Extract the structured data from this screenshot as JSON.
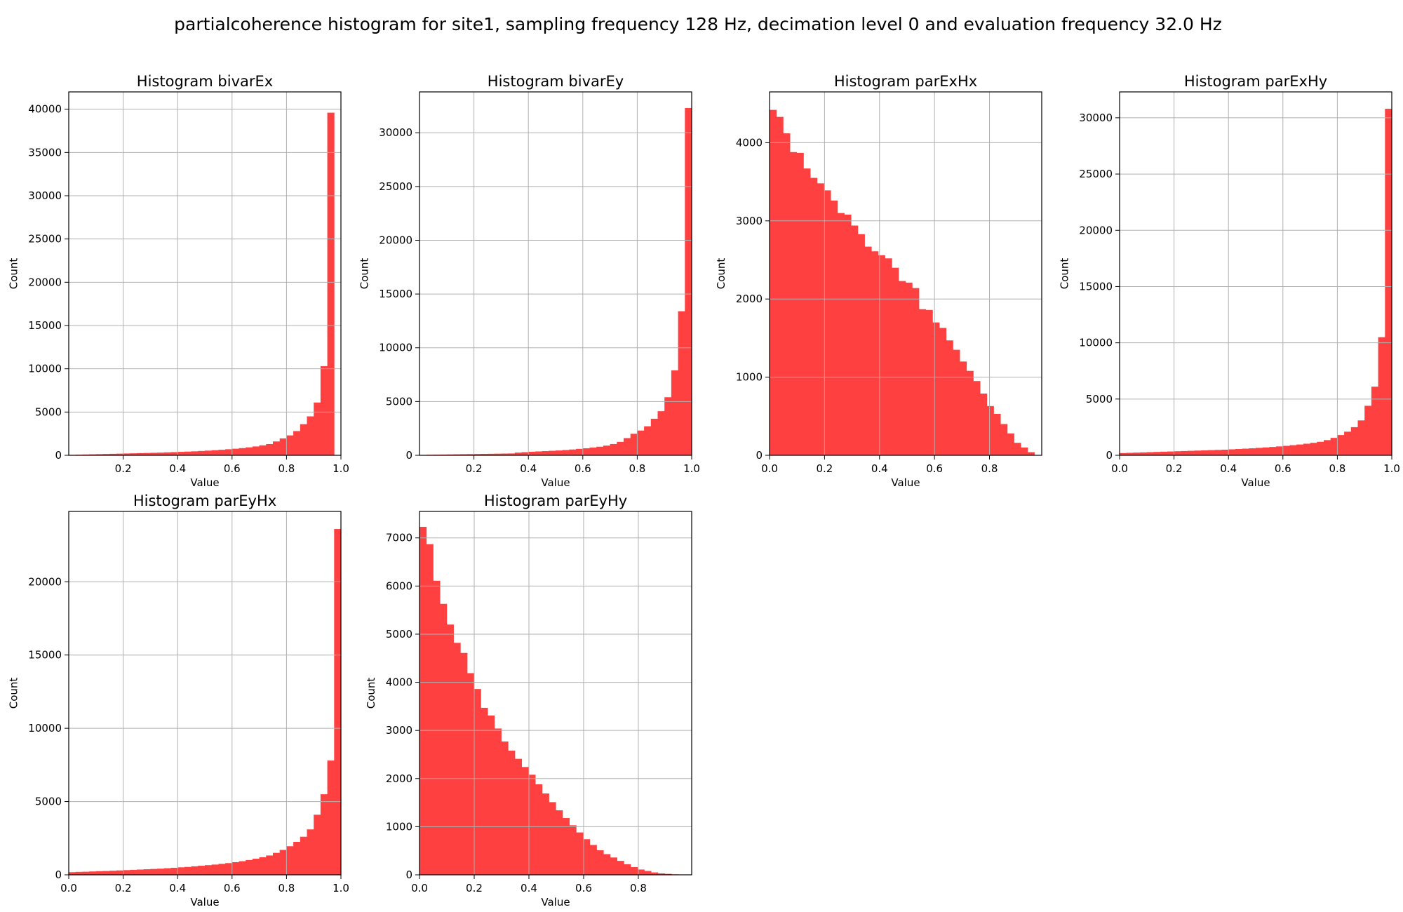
{
  "figure": {
    "title": "partialcoherence histogram for site1, sampling frequency 128 Hz, decimation level 0 and evaluation frequency 32.0 Hz",
    "bar_color": "#ff4040",
    "grid_color": "#b0b0b0"
  },
  "chart_data": [
    {
      "type": "bar",
      "title": "Histogram bivarEx",
      "xlabel": "Value",
      "ylabel": "Count",
      "xlim": [
        0.0,
        1.0
      ],
      "ylim": [
        0,
        42000
      ],
      "xticks": [
        0.2,
        0.4,
        0.6,
        0.8,
        1.0
      ],
      "yticks": [
        0,
        5000,
        10000,
        15000,
        20000,
        25000,
        30000,
        35000,
        40000
      ],
      "grid": true,
      "bin_start": 0.0,
      "bin_width": 0.025,
      "values": [
        50,
        70,
        90,
        110,
        130,
        150,
        170,
        190,
        210,
        230,
        250,
        270,
        290,
        310,
        340,
        370,
        400,
        430,
        460,
        500,
        540,
        590,
        640,
        700,
        760,
        830,
        920,
        1020,
        1150,
        1300,
        1600,
        1950,
        2300,
        2800,
        3600,
        4500,
        6100,
        10300,
        39600,
        0
      ]
    },
    {
      "type": "bar",
      "title": "Histogram bivarEy",
      "xlabel": "Value",
      "ylabel": "Count",
      "xlim": [
        0.0,
        1.0
      ],
      "ylim": [
        0,
        33800
      ],
      "xticks": [
        0.2,
        0.4,
        0.6,
        0.8,
        1.0
      ],
      "yticks": [
        0,
        5000,
        10000,
        15000,
        20000,
        25000,
        30000
      ],
      "grid": true,
      "bin_start": 0.0,
      "bin_width": 0.025,
      "values": [
        30,
        50,
        60,
        70,
        80,
        90,
        100,
        110,
        120,
        130,
        140,
        150,
        160,
        170,
        250,
        290,
        330,
        360,
        390,
        420,
        450,
        490,
        540,
        600,
        650,
        720,
        800,
        900,
        1050,
        1250,
        1600,
        2000,
        2300,
        2700,
        3400,
        4100,
        5400,
        7900,
        13400,
        32300
      ]
    },
    {
      "type": "bar",
      "title": "Histogram parExHx",
      "xlabel": "Value",
      "ylabel": "Count",
      "xlim": [
        0.0,
        0.99
      ],
      "ylim": [
        0,
        4650
      ],
      "xticks": [
        0.0,
        0.2,
        0.4,
        0.6,
        0.8
      ],
      "yticks": [
        0,
        1000,
        2000,
        3000,
        4000
      ],
      "grid": true,
      "bin_start": 0.0,
      "bin_width": 0.0247,
      "values": [
        4420,
        4330,
        4120,
        3880,
        3870,
        3670,
        3550,
        3480,
        3390,
        3260,
        3100,
        3080,
        2940,
        2830,
        2670,
        2610,
        2560,
        2520,
        2400,
        2230,
        2210,
        2140,
        1870,
        1860,
        1700,
        1630,
        1470,
        1350,
        1200,
        1080,
        950,
        790,
        630,
        530,
        400,
        280,
        160,
        100,
        40,
        0
      ]
    },
    {
      "type": "bar",
      "title": "Histogram parExHy",
      "xlabel": "Value",
      "ylabel": "Count",
      "xlim": [
        0.0,
        1.0
      ],
      "ylim": [
        0,
        32300
      ],
      "xticks": [
        0.0,
        0.2,
        0.4,
        0.6,
        0.8,
        1.0
      ],
      "yticks": [
        0,
        5000,
        10000,
        15000,
        20000,
        25000,
        30000
      ],
      "grid": true,
      "bin_start": 0.0,
      "bin_width": 0.025,
      "values": [
        200,
        220,
        240,
        260,
        280,
        300,
        320,
        340,
        360,
        380,
        400,
        420,
        440,
        460,
        480,
        500,
        530,
        560,
        590,
        620,
        660,
        700,
        740,
        790,
        840,
        900,
        960,
        1030,
        1110,
        1200,
        1350,
        1550,
        1800,
        2100,
        2500,
        3100,
        4400,
        6100,
        10500,
        30800
      ]
    },
    {
      "type": "bar",
      "title": "Histogram parEyHx",
      "xlabel": "Value",
      "ylabel": "Count",
      "xlim": [
        0.0,
        1.0
      ],
      "ylim": [
        0,
        24800
      ],
      "xticks": [
        0.0,
        0.2,
        0.4,
        0.6,
        0.8,
        1.0
      ],
      "yticks": [
        0,
        5000,
        10000,
        15000,
        20000
      ],
      "grid": true,
      "bin_start": 0.0,
      "bin_width": 0.025,
      "values": [
        180,
        200,
        210,
        230,
        250,
        260,
        280,
        300,
        320,
        340,
        360,
        380,
        400,
        420,
        450,
        480,
        510,
        540,
        580,
        620,
        660,
        700,
        750,
        800,
        860,
        930,
        1010,
        1100,
        1200,
        1320,
        1500,
        1700,
        1950,
        2250,
        2600,
        3100,
        4100,
        5500,
        7800,
        23600
      ]
    },
    {
      "type": "bar",
      "title": "Histogram parEyHy",
      "xlabel": "Value",
      "ylabel": "Count",
      "xlim": [
        0.0,
        0.995
      ],
      "ylim": [
        0,
        7550
      ],
      "xticks": [
        0.0,
        0.2,
        0.4,
        0.6,
        0.8
      ],
      "yticks": [
        0,
        1000,
        2000,
        3000,
        4000,
        5000,
        6000,
        7000
      ],
      "grid": true,
      "bin_start": 0.0,
      "bin_width": 0.0249,
      "values": [
        7230,
        6870,
        6110,
        5630,
        5200,
        4820,
        4610,
        4190,
        3860,
        3470,
        3310,
        3040,
        2770,
        2580,
        2410,
        2240,
        2080,
        1880,
        1690,
        1510,
        1340,
        1180,
        1030,
        880,
        740,
        620,
        510,
        430,
        360,
        290,
        220,
        160,
        110,
        80,
        50,
        30,
        20,
        10,
        5,
        0
      ]
    }
  ]
}
